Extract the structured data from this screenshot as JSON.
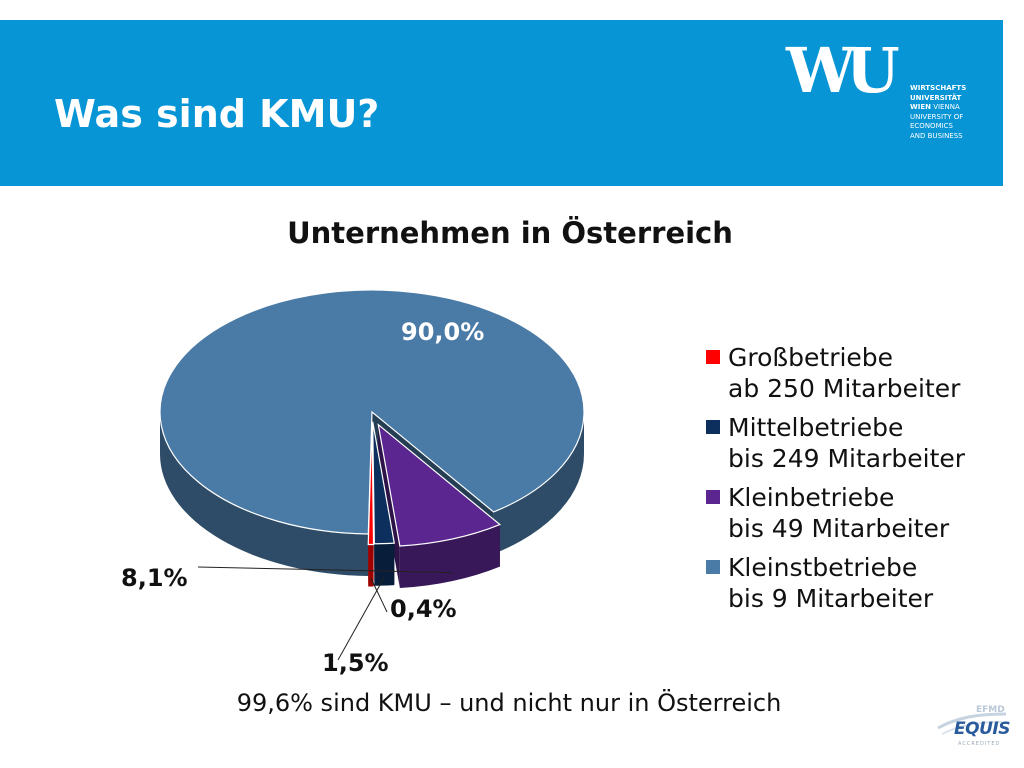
{
  "slide": {
    "title": "Was sind KMU?",
    "footer": "99,6% sind KMU – und nicht nur in Österreich"
  },
  "logo": {
    "letters": "WU",
    "line1": "WIRTSCHAFTS",
    "line2": "UNIVERSITÄT",
    "line3a": "WIEN",
    "line3b": "VIENNA",
    "line4": "UNIVERSITY OF",
    "line5": "ECONOMICS",
    "line6": "AND BUSINESS"
  },
  "badge": {
    "top": "EFMD",
    "word": "EQUIS",
    "bottom": "ACCREDITED"
  },
  "chart_data": {
    "type": "pie",
    "title": "Unternehmen in Österreich",
    "slices": [
      {
        "name": "Großbetriebe",
        "detail": "ab 250 Mitarbeiter",
        "value": 0.4,
        "label": "0,4%",
        "color": "#ff0000"
      },
      {
        "name": "Mittelbetriebe",
        "detail": "bis 249 Mitarbeiter",
        "value": 1.5,
        "label": "1,5%",
        "color": "#0d2f5e"
      },
      {
        "name": "Kleinbetriebe",
        "detail": "bis 49 Mitarbeiter",
        "value": 8.1,
        "label": "8,1%",
        "color": "#5b2690"
      },
      {
        "name": "Kleinstbetriebe",
        "detail": "bis 9 Mitarbeiter",
        "value": 90.0,
        "label": "90,0%",
        "color": "#4a7ba6"
      }
    ],
    "legend_position": "right"
  }
}
